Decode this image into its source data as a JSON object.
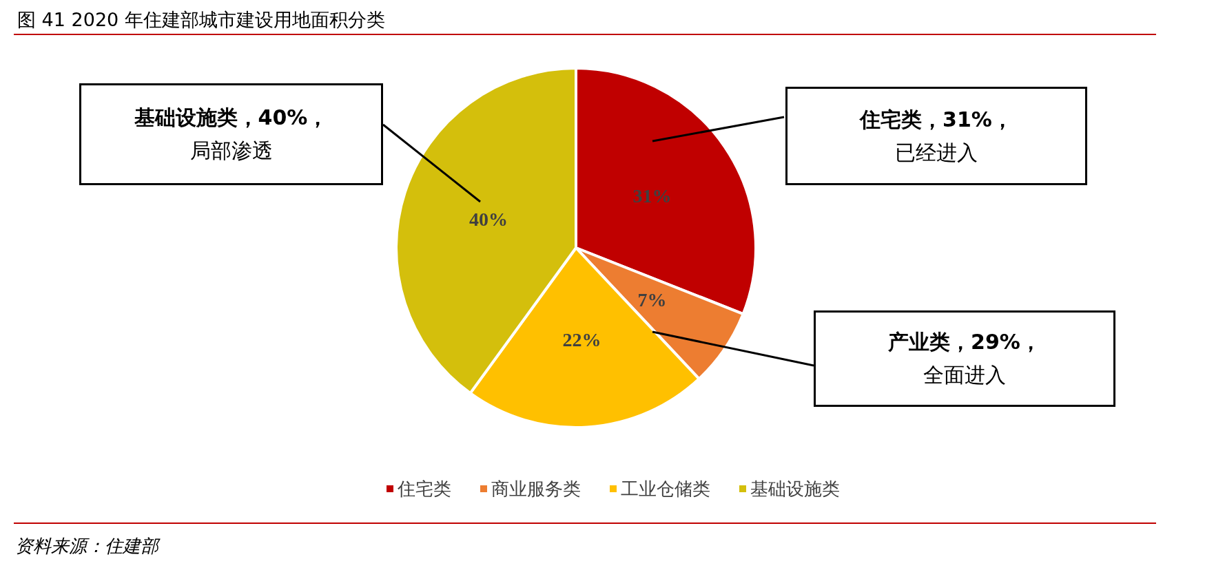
{
  "chart_data": {
    "type": "pie",
    "title": "图 41 2020 年住建部城市建设用地面积分类",
    "categories": [
      "住宅类",
      "商业服务类",
      "工业仓储类",
      "基础设施类"
    ],
    "values": [
      31,
      7,
      22,
      40
    ],
    "colors": [
      "#c00000",
      "#ed7d31",
      "#ffc000",
      "#d4bf0c"
    ],
    "value_labels": [
      "31%",
      "7%",
      "22%",
      "40%"
    ],
    "legend": "bottom",
    "annotations": [
      "基础设施类，40%，",
      "局部渗透",
      "住宅类，31%，",
      "已经进入",
      "产业类，29%，",
      "全面进入",
      "资料来源：住建部"
    ]
  }
}
